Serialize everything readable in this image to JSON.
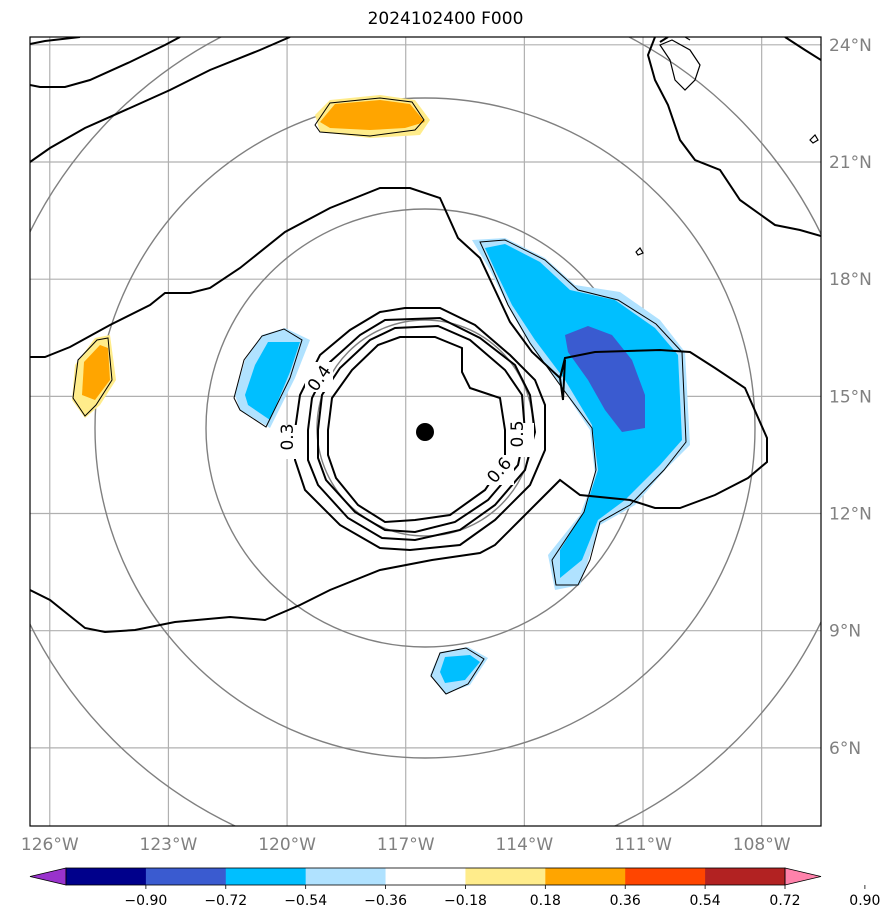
{
  "title": "2024102400 F000",
  "map": {
    "lon_range": [
      -126.5,
      -106.5
    ],
    "lat_range": [
      4.0,
      24.2
    ],
    "lon_ticks": [
      -126,
      -123,
      -120,
      -117,
      -114,
      -111,
      -108
    ],
    "lat_ticks": [
      6,
      9,
      12,
      15,
      18,
      21,
      24
    ],
    "lon_labels": [
      "126°W",
      "123°W",
      "120°W",
      "117°W",
      "114°W",
      "111°W",
      "108°W"
    ],
    "lat_labels": [
      "6°N",
      "9°N",
      "12°N",
      "15°N",
      "18°N",
      "21°N",
      "24°N"
    ],
    "grid": true,
    "center_marker": {
      "lon": -116.5,
      "lat": 14.2
    }
  },
  "contour_labels": [
    "0.3",
    "0.4",
    "0.5",
    "0.6"
  ],
  "colorbar": {
    "levels": [
      "−0.90",
      "−0.72",
      "−0.54",
      "−0.36",
      "−0.18",
      "0.18",
      "0.36",
      "0.54",
      "0.72",
      "0.90"
    ],
    "colors": [
      "#9932cc",
      "#00008b",
      "#3a5bd0",
      "#00bfff",
      "#b0e2ff",
      "#ffffff",
      "#ffec8b",
      "#ffa500",
      "#ff4500",
      "#b22222",
      "#ff82ab"
    ],
    "extend": "both"
  },
  "colors": {
    "grid": "#b0b0b0",
    "range_rings": "#808080",
    "contours": "#000000",
    "tick_text": "#808080"
  }
}
